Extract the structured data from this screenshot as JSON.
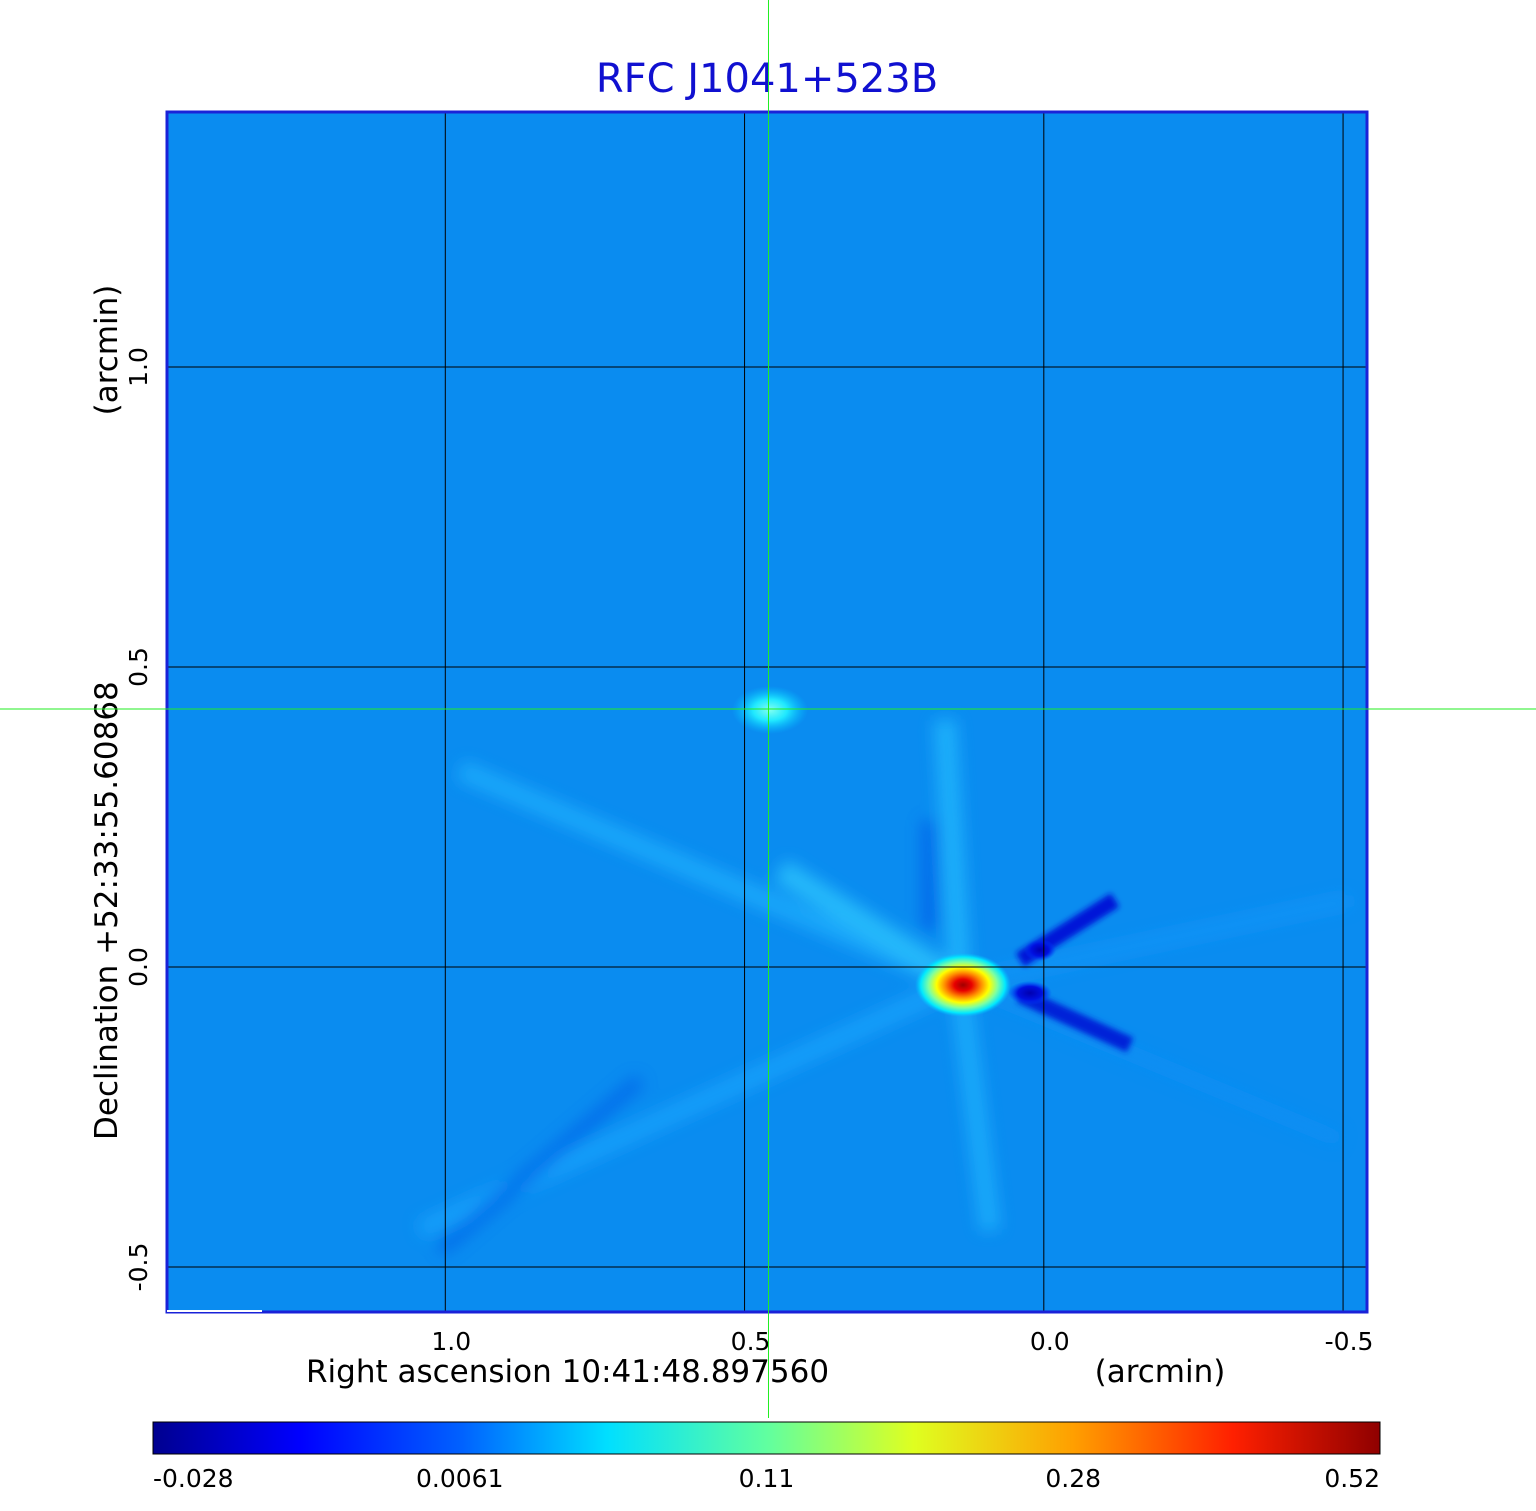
{
  "chart_data": {
    "type": "heatmap",
    "title": "RFC J1041+523B",
    "xlabel": "Right ascension  10:41:48.897560",
    "xunit": "(arcmin)",
    "ylabel": "Declination  +52:33:55.60868",
    "yunit": "(arcmin)",
    "x_ticks": [
      {
        "value": 1.0,
        "label": "1.0"
      },
      {
        "value": 0.5,
        "label": "0.5"
      },
      {
        "value": 0.0,
        "label": "0.0"
      },
      {
        "value": -0.5,
        "label": "-0.5"
      }
    ],
    "y_ticks": [
      {
        "value": 1.0,
        "label": "1.0"
      },
      {
        "value": 0.5,
        "label": "0.5"
      },
      {
        "value": 0.0,
        "label": "0.0"
      },
      {
        "value": -0.5,
        "label": "-0.5"
      }
    ],
    "xlim": [
      1.465,
      -0.54
    ],
    "ylim": [
      -0.575,
      1.425
    ],
    "grid": true,
    "crosshair": {
      "x": 0.46,
      "y": 0.43
    },
    "sources": [
      {
        "x": 0.14,
        "y": -0.025,
        "peak": 0.52
      },
      {
        "x": 0.46,
        "y": 0.43,
        "peak": 0.11
      }
    ],
    "colorbar": {
      "labels": [
        "-0.028",
        "0.0061",
        "0.11",
        "0.28",
        "0.52"
      ],
      "colormap": "jet"
    },
    "colors": {
      "background": "#0a8cf0",
      "frame": "#1a22d8",
      "crosshair": "#22ee22",
      "title": "#1010d0"
    }
  }
}
